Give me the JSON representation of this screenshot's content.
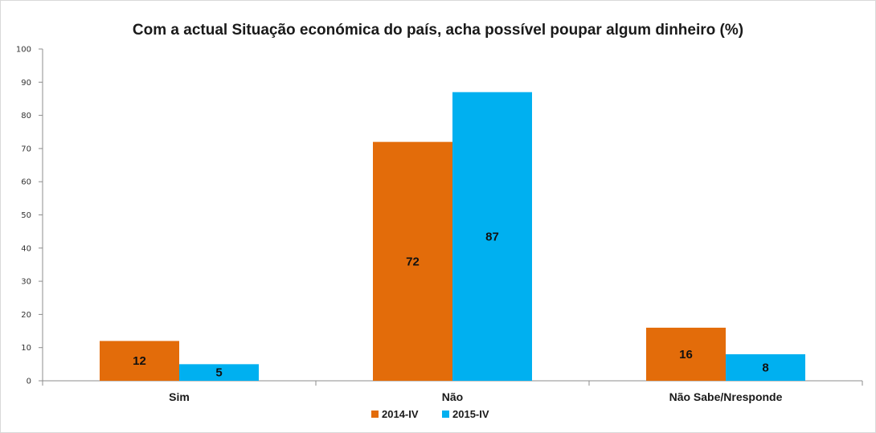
{
  "chart_data": {
    "type": "bar",
    "title": "Com a actual Situação económica do país, acha possível poupar algum dinheiro (%)",
    "xlabel": "",
    "ylabel": "",
    "categories": [
      "Sim",
      "Não",
      "Não Sabe/Nresponde"
    ],
    "series": [
      {
        "name": "2014-IV",
        "values": [
          12,
          72,
          16
        ],
        "color": "#e36c0a"
      },
      {
        "name": "2015-IV",
        "values": [
          5,
          87,
          8
        ],
        "color": "#00b0f0"
      }
    ],
    "ylim": [
      0,
      100
    ],
    "yticks": [
      0,
      10,
      20,
      30,
      40,
      50,
      60,
      70,
      80,
      90,
      100
    ],
    "grid": false,
    "legend": "bottom",
    "data_labels": true
  }
}
